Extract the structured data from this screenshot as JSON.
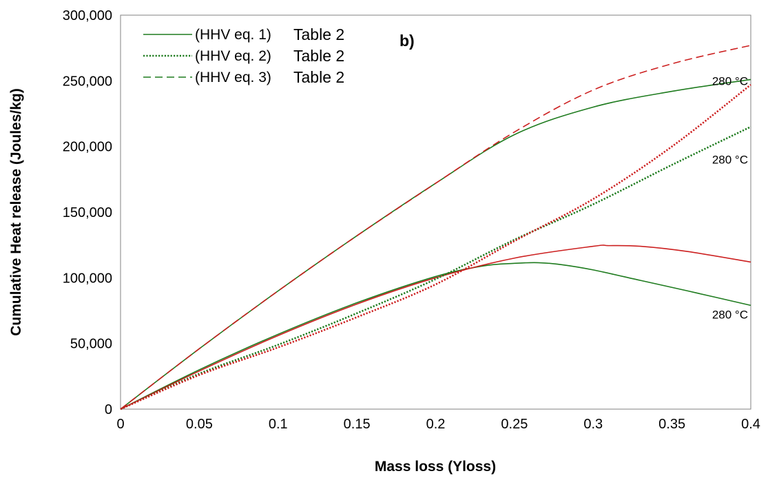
{
  "chart_data": {
    "type": "line",
    "panel_label": "b)",
    "xlabel": "Mass loss (Yloss)",
    "ylabel": "Cumulative Heat release (Joules/kg)",
    "xlim": [
      0,
      0.4
    ],
    "ylim": [
      0,
      300000
    ],
    "x_ticks": [
      "0",
      "0.05",
      "0.1",
      "0.15",
      "0.2",
      "0.25",
      "0.3",
      "0.35",
      "0.4"
    ],
    "y_ticks": [
      "0",
      "50,000",
      "100,000",
      "150,000",
      "200,000",
      "250,000",
      "300,000"
    ],
    "grid": false,
    "legend_position": "top-left",
    "legend": [
      {
        "label": "(HHV eq. 1)",
        "suffix": "Table 2",
        "style": "solid",
        "color": "#1e7b1e"
      },
      {
        "label": "(HHV eq. 2)",
        "suffix": "Table 2",
        "style": "dotted",
        "color": "#1e7b1e"
      },
      {
        "label": "(HHV eq. 3)",
        "suffix": "Table 2",
        "style": "dashed",
        "color": "#1e7b1e"
      }
    ],
    "annotations": [
      {
        "text": "280 °C",
        "x": 0.4,
        "y": 250000
      },
      {
        "text": "280 °C",
        "x": 0.4,
        "y": 190000
      },
      {
        "text": "280 °C",
        "x": 0.4,
        "y": 72000
      }
    ],
    "series": [
      {
        "style": "solid",
        "color": "#1e7b1e",
        "x": [
          0,
          0.05,
          0.1,
          0.15,
          0.2,
          0.23,
          0.25,
          0.265,
          0.28,
          0.3,
          0.33,
          0.36,
          0.4
        ],
        "y": [
          0,
          30000,
          57000,
          81000,
          101000,
          109000,
          111000,
          111500,
          110000,
          106000,
          98000,
          90000,
          79000
        ]
      },
      {
        "style": "solid",
        "color": "#cc1f1f",
        "x": [
          0,
          0.05,
          0.1,
          0.15,
          0.2,
          0.25,
          0.3,
          0.31,
          0.33,
          0.36,
          0.4
        ],
        "y": [
          0,
          29000,
          56000,
          80000,
          100000,
          115000,
          124000,
          124500,
          124000,
          120000,
          112000
        ]
      },
      {
        "style": "dotted",
        "color": "#1e7b1e",
        "x": [
          0,
          0.05,
          0.1,
          0.15,
          0.2,
          0.25,
          0.3,
          0.35,
          0.4
        ],
        "y": [
          0,
          27000,
          49000,
          73000,
          99000,
          129000,
          156000,
          186000,
          215000
        ]
      },
      {
        "style": "dotted",
        "color": "#cc1f1f",
        "x": [
          0,
          0.05,
          0.1,
          0.15,
          0.2,
          0.25,
          0.3,
          0.35,
          0.4
        ],
        "y": [
          0,
          26000,
          47000,
          70000,
          95000,
          128000,
          160000,
          200000,
          247000
        ]
      },
      {
        "style": "solid",
        "color": "#1e7b1e",
        "x": [
          0,
          0.05,
          0.1,
          0.15,
          0.2,
          0.25,
          0.3,
          0.35,
          0.4
        ],
        "y": [
          0,
          46000,
          90000,
          132000,
          172000,
          209000,
          230000,
          242000,
          251000
        ]
      },
      {
        "style": "dashed",
        "color": "#1e7b1e",
        "x": [
          0,
          0.05,
          0.1,
          0.15,
          0.2
        ],
        "y": [
          0,
          46000,
          90000,
          132000,
          172000
        ]
      },
      {
        "style": "dashed",
        "color": "#cc1f1f",
        "x": [
          0,
          0.05,
          0.1,
          0.15,
          0.2,
          0.25,
          0.3,
          0.35,
          0.4
        ],
        "y": [
          0,
          46000,
          90000,
          132000,
          172000,
          211000,
          243000,
          263000,
          277000
        ]
      }
    ]
  }
}
